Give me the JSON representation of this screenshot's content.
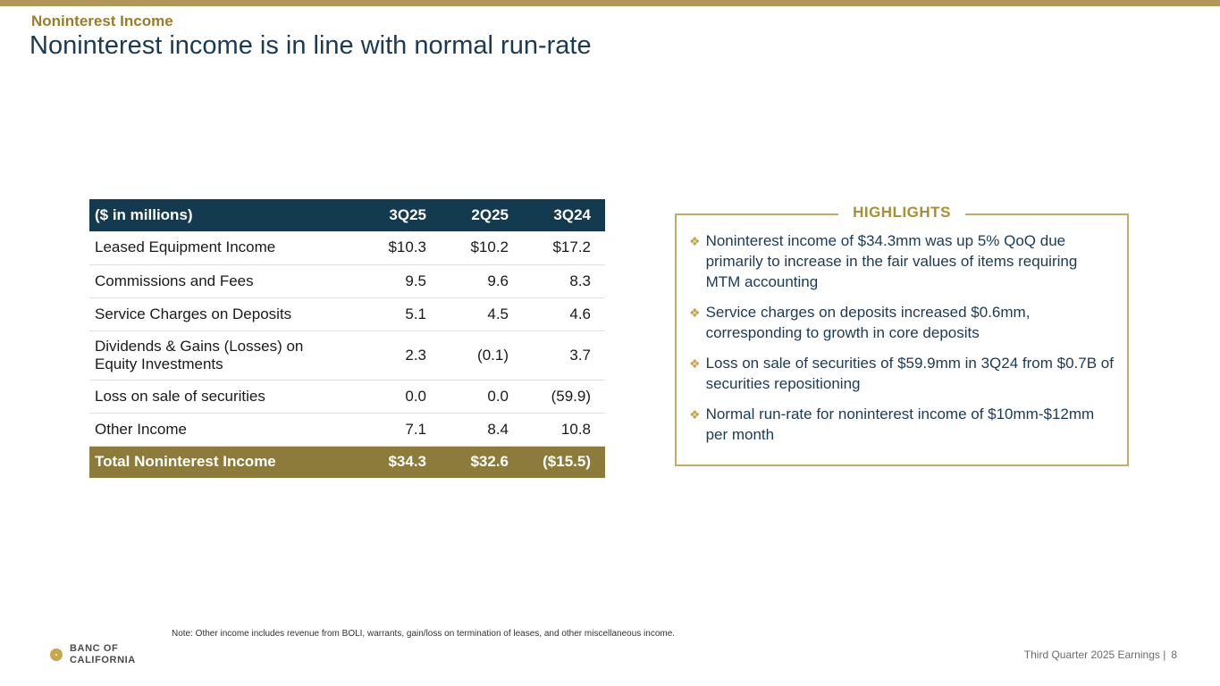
{
  "slide": {
    "eyebrow": "Noninterest Income",
    "title": "Noninterest income is in line with normal run-rate"
  },
  "table": {
    "header": [
      "($ in millions)",
      "3Q25",
      "2Q25",
      "3Q24"
    ],
    "rows": [
      {
        "label": "Leased Equipment Income",
        "values": [
          "$10.3",
          "$10.2",
          "$17.2"
        ]
      },
      {
        "label": "Commissions and Fees",
        "values": [
          "9.5",
          "9.6",
          "8.3"
        ]
      },
      {
        "label": "Service Charges on Deposits",
        "values": [
          "5.1",
          "4.5",
          "4.6"
        ]
      },
      {
        "label": "Dividends & Gains (Losses) on Equity Investments",
        "values": [
          "2.3",
          "(0.1)",
          "3.7"
        ]
      },
      {
        "label": "Loss on sale of securities",
        "values": [
          "0.0",
          "0.0",
          "(59.9)"
        ]
      },
      {
        "label": "Other Income",
        "values": [
          "7.1",
          "8.4",
          "10.8"
        ]
      }
    ],
    "total": {
      "label": "Total Noninterest Income",
      "values": [
        "$34.3",
        "$32.6",
        "($15.5)"
      ]
    }
  },
  "highlights": {
    "title": "HIGHLIGHTS",
    "bullet_glyph": "❖",
    "bullets": [
      "Noninterest income of $34.3mm was up 5% QoQ due primarily to increase in the fair values of items requiring MTM accounting",
      "Service charges on deposits increased $0.6mm, corresponding to growth in core deposits",
      "Loss on sale of securities of $59.9mm in 3Q24 from $0.7B of securities repositioning",
      "Normal run-rate for noninterest income of $10mm-$12mm per month"
    ]
  },
  "footer": {
    "note": "Note: Other income includes revenue from BOLI, warrants, gain/loss on termination of leases, and other miscellaneous income.",
    "earnings_label": "Third Quarter 2025 Earnings |",
    "page_number": "8"
  },
  "logo": {
    "line1": "BANC OF",
    "line2": "CALIFORNIA"
  },
  "colors": {
    "accent_gold": "#B2975B",
    "eyebrow_gold": "#9C7C28",
    "title_navy": "#1B3A54",
    "table_header_navy": "#143A50",
    "total_row_gold": "#8C7B3A",
    "highlight_border_gold": "#C5AB62",
    "bullet_gold": "#C0A44E"
  }
}
